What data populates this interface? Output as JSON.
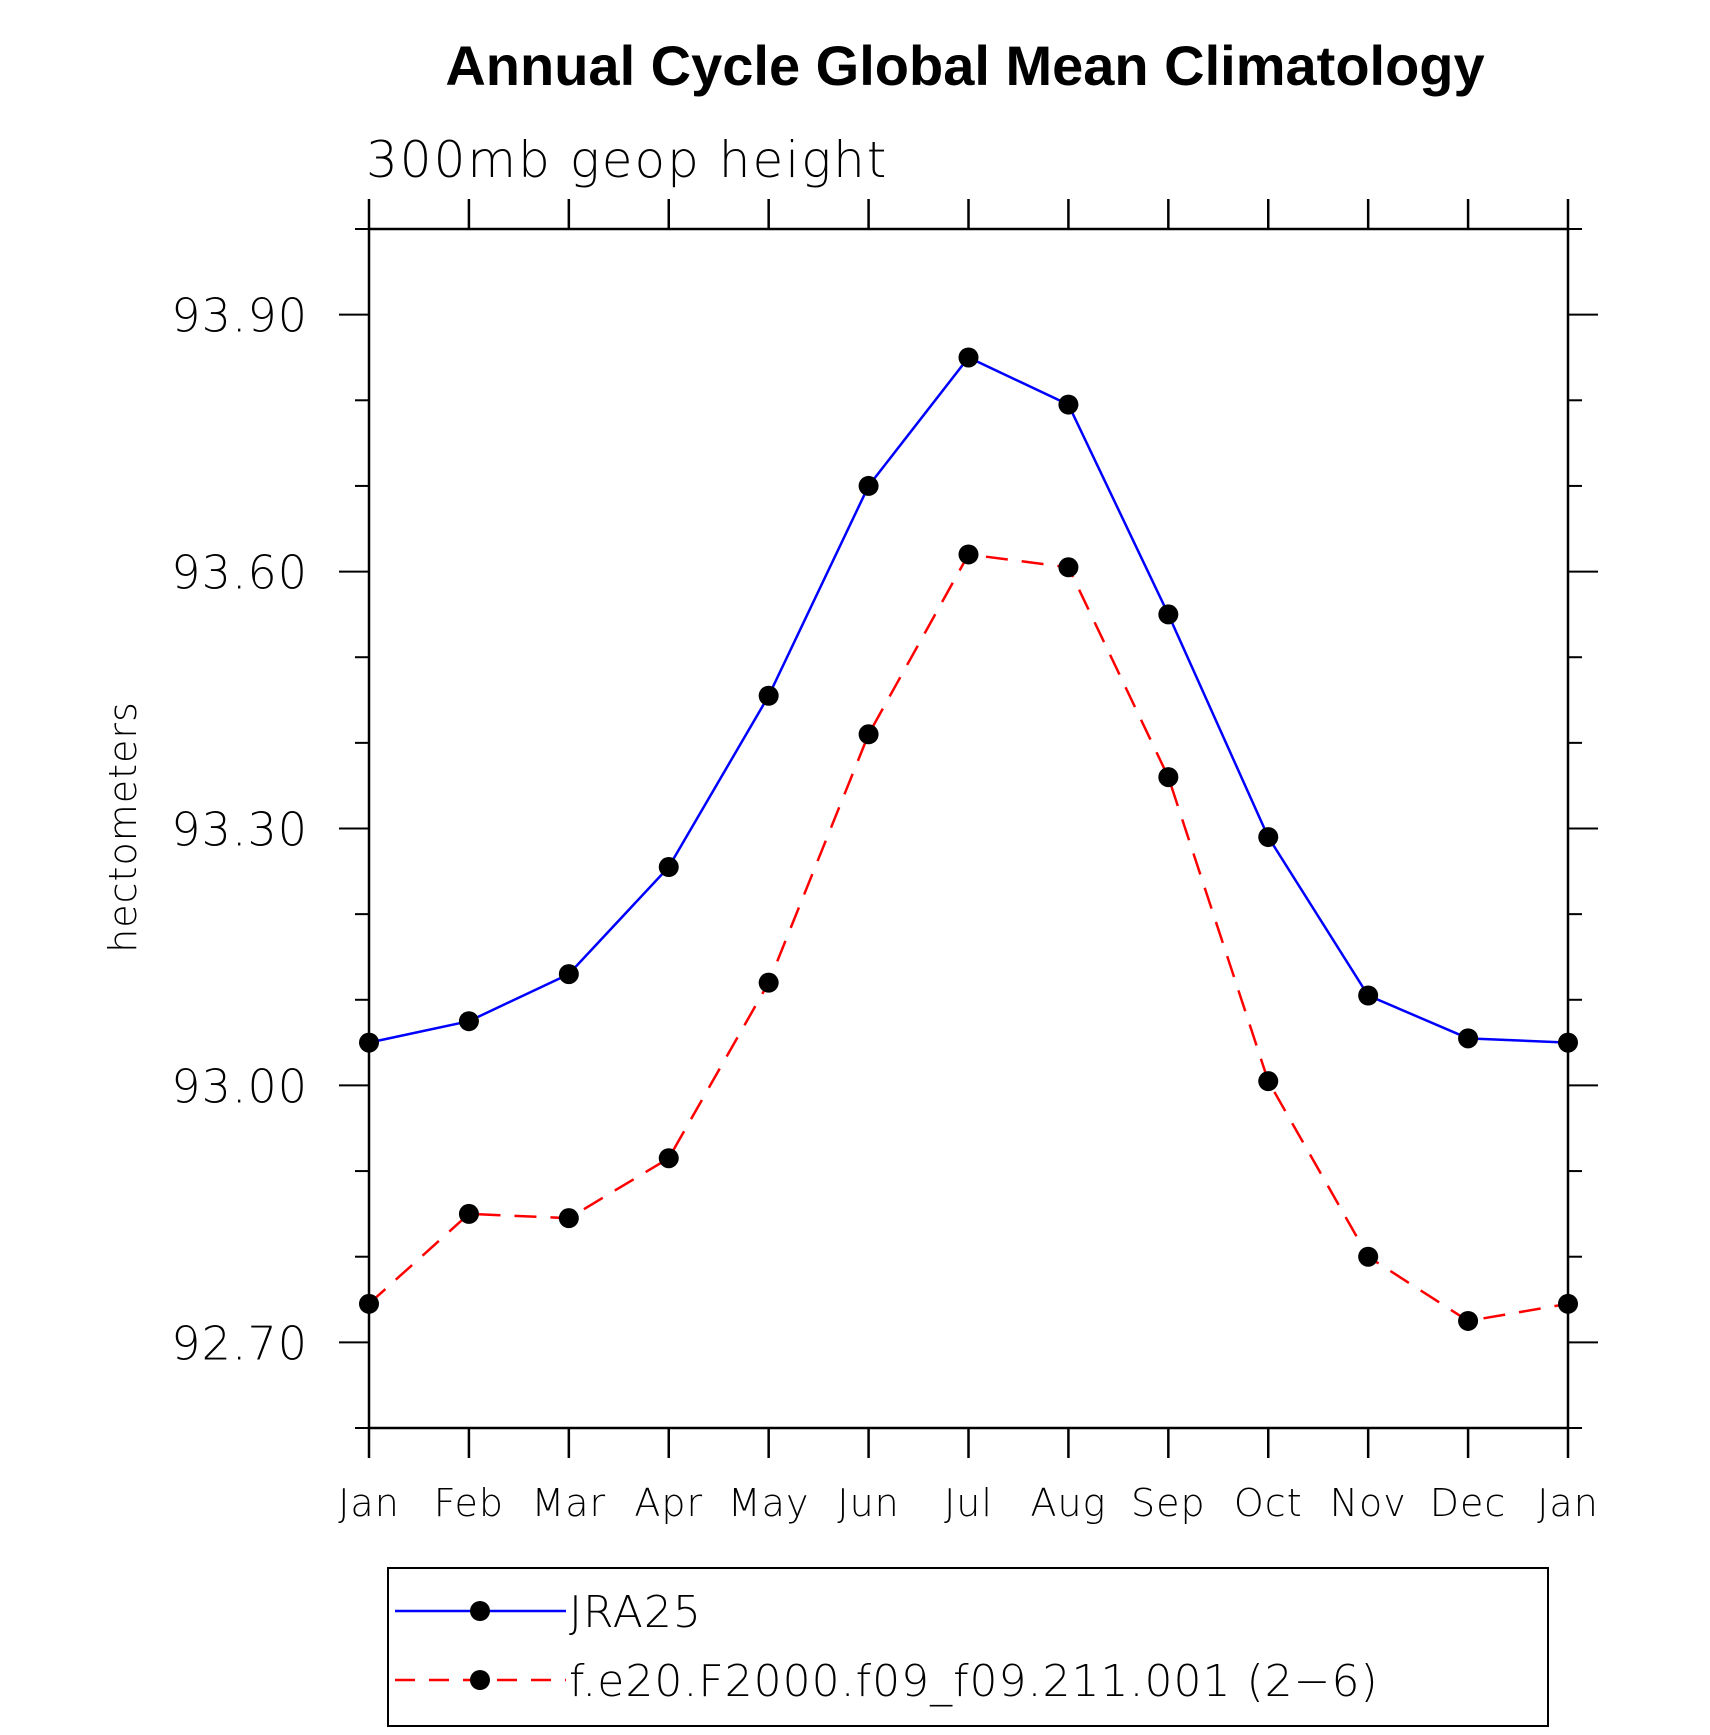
{
  "chart_data": {
    "type": "line",
    "title": "Annual Cycle Global Mean Climatology",
    "subtitle": "300mb geop height",
    "xlabel": "",
    "ylabel": "hectometers",
    "categories": [
      "Jan",
      "Feb",
      "Mar",
      "Apr",
      "May",
      "Jun",
      "Jul",
      "Aug",
      "Sep",
      "Oct",
      "Nov",
      "Dec",
      "Jan"
    ],
    "ylim": [
      92.6,
      94.0
    ],
    "yticks": [
      92.7,
      93.0,
      93.3,
      93.6,
      93.9
    ],
    "ytick_labels": [
      "92.70",
      "93.00",
      "93.30",
      "93.60",
      "93.90"
    ],
    "grid": false,
    "legend_position": "bottom",
    "series": [
      {
        "name": "JRA25",
        "color": "#0000ff",
        "line_style": "solid",
        "marker": "filled-circle",
        "values": [
          93.05,
          93.075,
          93.13,
          93.255,
          93.455,
          93.7,
          93.85,
          93.795,
          93.55,
          93.29,
          93.105,
          93.055,
          93.05
        ]
      },
      {
        "name": "f.e20.F2000.f09_f09.211.001 (2−6)",
        "color": "#ff0000",
        "line_style": "dashed",
        "marker": "filled-circle",
        "values": [
          92.745,
          92.85,
          92.845,
          92.915,
          93.12,
          93.41,
          93.62,
          93.605,
          93.36,
          93.005,
          92.8,
          92.725,
          92.745
        ]
      }
    ]
  }
}
